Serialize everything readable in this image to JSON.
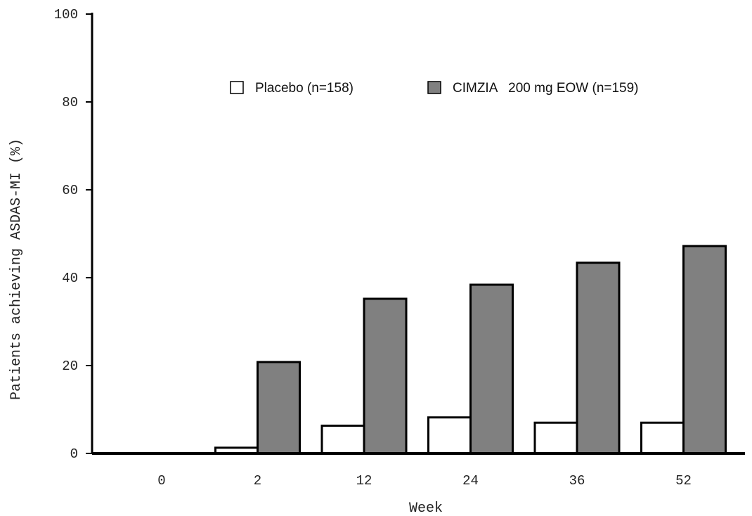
{
  "chart_data": {
    "type": "bar",
    "title": "",
    "xlabel": "Week",
    "ylabel": "Patients achieving ASDAS-MI (%)",
    "categories": [
      "0",
      "2",
      "12",
      "24",
      "36",
      "52"
    ],
    "ylim": [
      0,
      100
    ],
    "yticks": [
      "0",
      "20",
      "40",
      "60",
      "80",
      "100"
    ],
    "series": [
      {
        "name": "Placebo (n=158)",
        "color": "#ffffff",
        "values": [
          0,
          1.3,
          6.3,
          8.2,
          7.0,
          7.0
        ]
      },
      {
        "name": "CIMZIA   200 mg EOW (n=159)",
        "color": "#808080",
        "values": [
          0,
          20.8,
          35.2,
          38.4,
          43.4,
          47.2
        ]
      }
    ],
    "legend": "top-center",
    "grid": false
  }
}
